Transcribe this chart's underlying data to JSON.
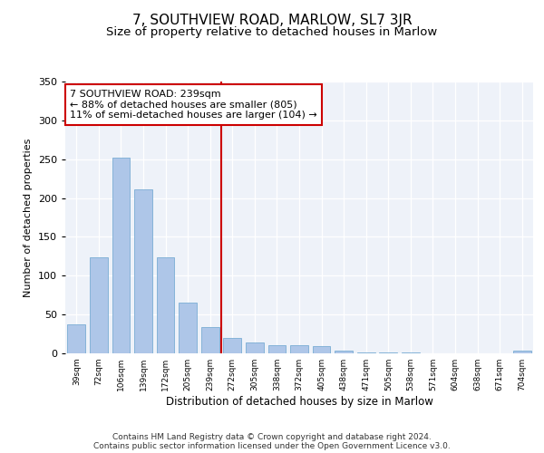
{
  "title": "7, SOUTHVIEW ROAD, MARLOW, SL7 3JR",
  "subtitle": "Size of property relative to detached houses in Marlow",
  "xlabel": "Distribution of detached houses by size in Marlow",
  "ylabel": "Number of detached properties",
  "categories": [
    "39sqm",
    "72sqm",
    "106sqm",
    "139sqm",
    "172sqm",
    "205sqm",
    "239sqm",
    "272sqm",
    "305sqm",
    "338sqm",
    "372sqm",
    "405sqm",
    "438sqm",
    "471sqm",
    "505sqm",
    "538sqm",
    "571sqm",
    "604sqm",
    "638sqm",
    "671sqm",
    "704sqm"
  ],
  "values": [
    37,
    124,
    252,
    211,
    124,
    65,
    34,
    20,
    14,
    10,
    10,
    9,
    4,
    1,
    1,
    1,
    0,
    0,
    0,
    0,
    3
  ],
  "bar_color": "#aec6e8",
  "bar_edge_color": "#7aadd4",
  "highlight_index": 6,
  "highlight_line_color": "#cc0000",
  "annotation_text": "7 SOUTHVIEW ROAD: 239sqm\n← 88% of detached houses are smaller (805)\n11% of semi-detached houses are larger (104) →",
  "annotation_box_color": "#ffffff",
  "annotation_box_edge_color": "#cc0000",
  "ylim": [
    0,
    350
  ],
  "yticks": [
    0,
    50,
    100,
    150,
    200,
    250,
    300,
    350
  ],
  "background_color": "#eef2f9",
  "footer_text": "Contains HM Land Registry data © Crown copyright and database right 2024.\nContains public sector information licensed under the Open Government Licence v3.0.",
  "title_fontsize": 11,
  "subtitle_fontsize": 9.5,
  "annotation_fontsize": 8,
  "footer_fontsize": 6.5,
  "ylabel_fontsize": 8,
  "xlabel_fontsize": 8.5
}
